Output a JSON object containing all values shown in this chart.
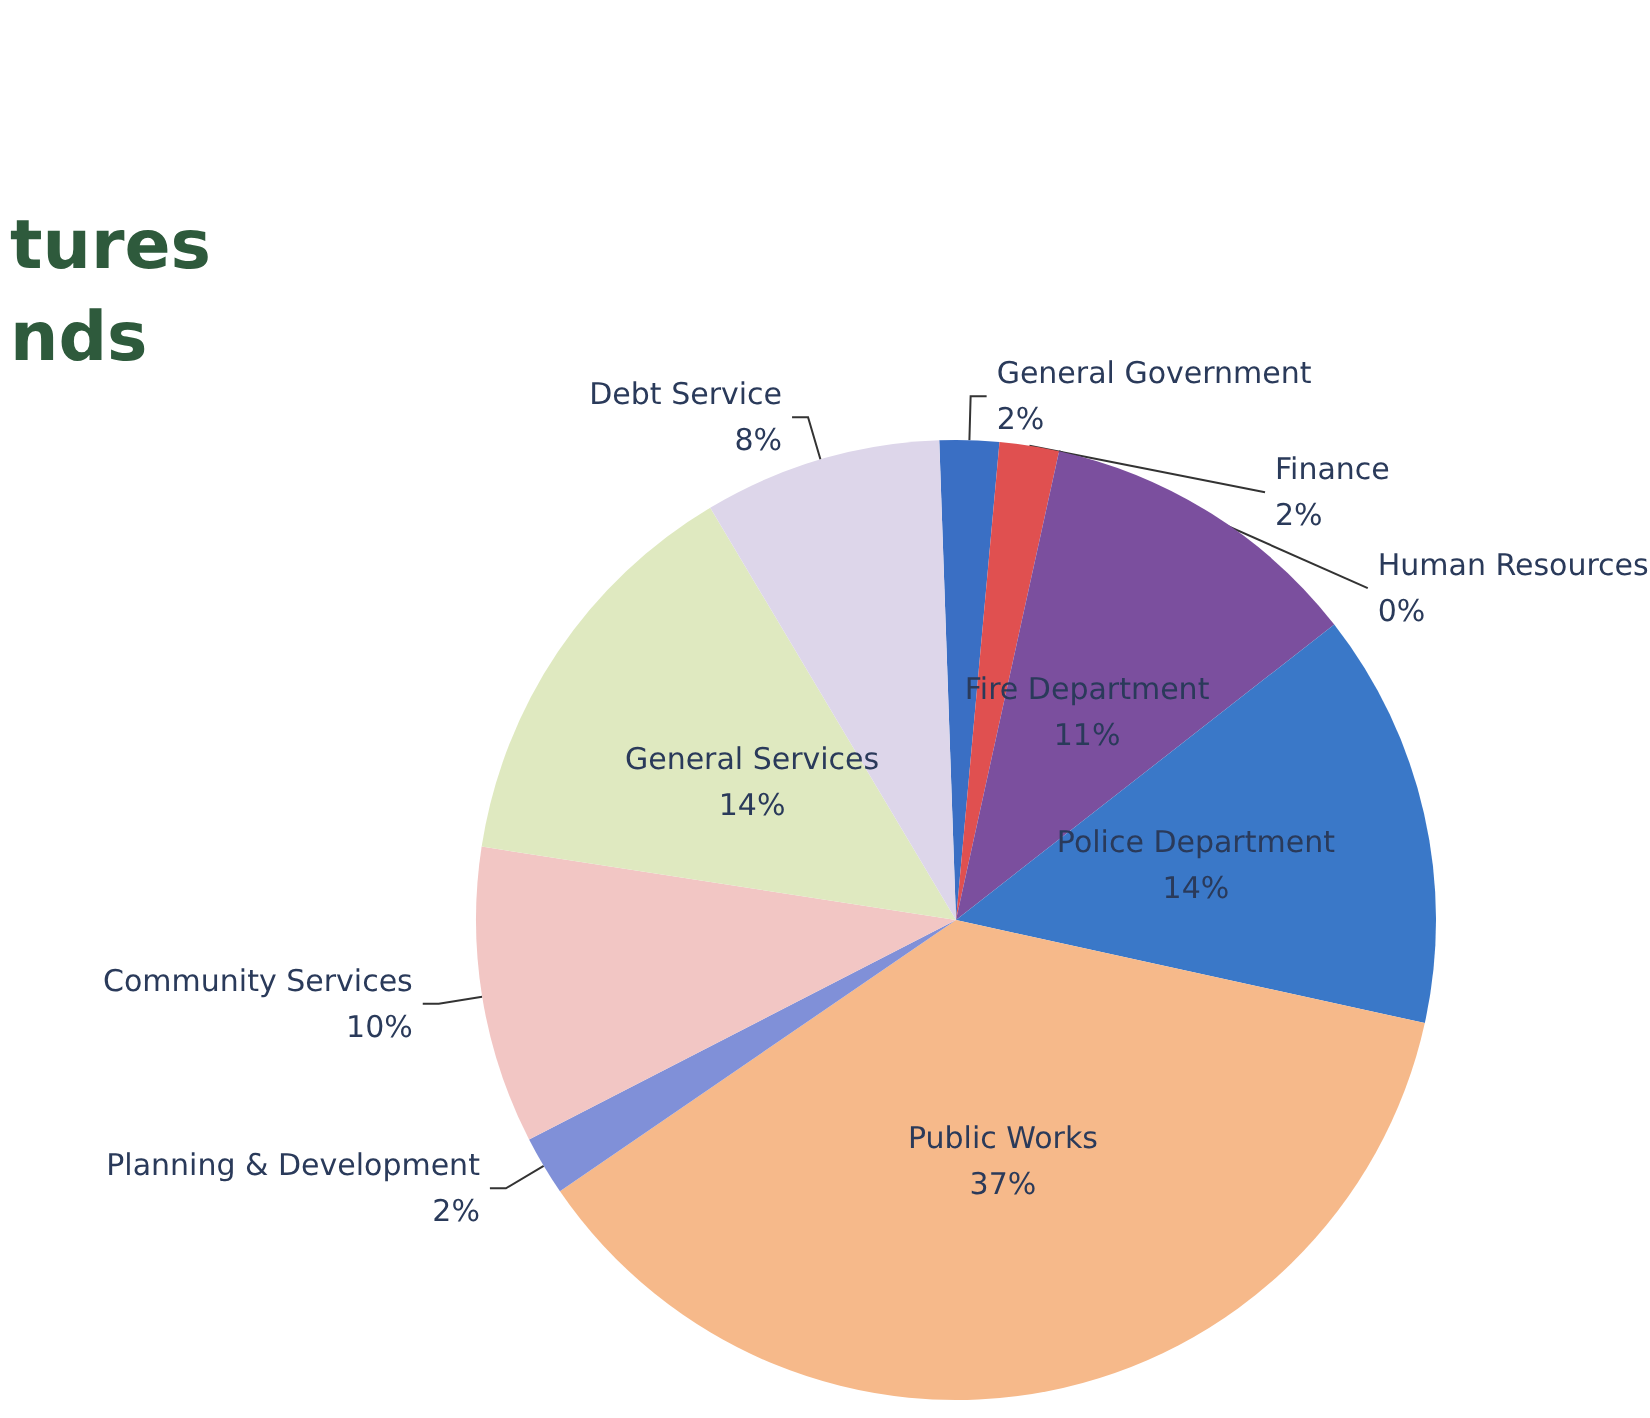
{
  "chart_data": {
    "type": "pie",
    "title": "tures\nnds",
    "categories": [
      "General Government",
      "Finance",
      "Human Resources",
      "Fire Department",
      "Police Department",
      "Public Works",
      "Planning & Development",
      "Community Services",
      "General Services",
      "Debt Service"
    ],
    "values": [
      2,
      2,
      0,
      11,
      14,
      37,
      2,
      10,
      14,
      8
    ],
    "value_labels": [
      "2%",
      "2%",
      "0%",
      "11%",
      "14%",
      "37%",
      "2%",
      "10%",
      "14%",
      "8%"
    ],
    "colors": [
      "#3a6fc4",
      "#e05050",
      "#f0e8d0",
      "#7b4f9e",
      "#3a78c8",
      "#f6b98a",
      "#8090d8",
      "#f2c6c4",
      "#dfe9c0",
      "#ddd6ea"
    ],
    "legend": false
  }
}
